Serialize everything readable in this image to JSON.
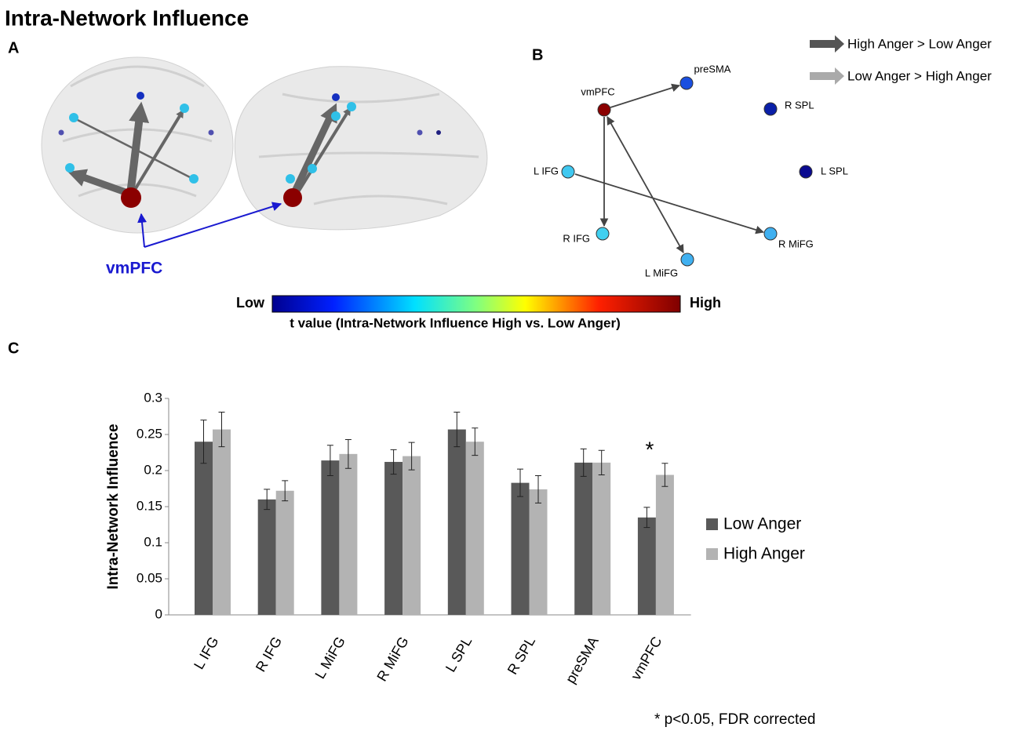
{
  "title": "Intra-Network Influence",
  "panels": [
    "A",
    "B",
    "C"
  ],
  "brain": {
    "label": "vmPFC"
  },
  "legend": {
    "dark": "High Anger > Low Anger",
    "light": "Low Anger > High Anger"
  },
  "colorbar": {
    "low": "Low",
    "high": "High",
    "caption": "t value (Intra-Network Influence High vs. Low Anger)"
  },
  "network": {
    "nodes": [
      {
        "label": "vmPFC",
        "color": "#8b0000"
      },
      {
        "label": "preSMA",
        "color": "#1a4fe0"
      },
      {
        "label": "R SPL",
        "color": "#0a1fa8"
      },
      {
        "label": "L IFG",
        "color": "#40c8f0"
      },
      {
        "label": "L SPL",
        "color": "#0a0a90"
      },
      {
        "label": "R IFG",
        "color": "#40d0f0"
      },
      {
        "label": "R MiFG",
        "color": "#40b0f0"
      },
      {
        "label": "L MiFG",
        "color": "#40b0f0"
      }
    ]
  },
  "chart_data": {
    "type": "bar",
    "ylabel": "Intra-Network Influence",
    "categories": [
      "L IFG",
      "R IFG",
      "L MiFG",
      "R MiFG",
      "L SPL",
      "R SPL",
      "preSMA",
      "vmPFC"
    ],
    "series": [
      {
        "name": "Low Anger",
        "color": "#595959",
        "values": [
          0.24,
          0.16,
          0.214,
          0.212,
          0.257,
          0.183,
          0.211,
          0.135
        ],
        "errors": [
          0.03,
          0.014,
          0.021,
          0.017,
          0.024,
          0.019,
          0.019,
          0.014
        ]
      },
      {
        "name": "High Anger",
        "color": "#b3b3b3",
        "values": [
          0.257,
          0.172,
          0.223,
          0.22,
          0.24,
          0.174,
          0.211,
          0.194
        ],
        "errors": [
          0.024,
          0.014,
          0.02,
          0.019,
          0.019,
          0.019,
          0.017,
          0.016
        ]
      }
    ],
    "ylim": [
      0,
      0.3
    ],
    "yticks": [
      0,
      0.05,
      0.1,
      0.15,
      0.2,
      0.25,
      0.3
    ],
    "annotation": "*",
    "footnote": "* p<0.05, FDR corrected"
  }
}
